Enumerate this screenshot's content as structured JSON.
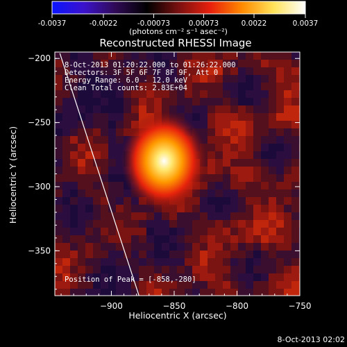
{
  "chart_data": {
    "type": "heatmap",
    "title": "Reconstructed RHESSI Image",
    "xlabel": "Heliocentric X (arcsec)",
    "ylabel": "Heliocentric Y (arcsec)",
    "xlim": [
      -945,
      -750
    ],
    "ylim": [
      -385,
      -195
    ],
    "x_ticks": [
      -900,
      -850,
      -800,
      -750
    ],
    "y_ticks": [
      -200,
      -250,
      -300,
      -350
    ],
    "x_tick_labels": [
      "−900",
      "−850",
      "−800",
      "−750"
    ],
    "y_tick_labels": [
      "−200",
      "−250",
      "−300",
      "−350"
    ],
    "annotations": [
      "8-Oct-2013 01:20:22.000 to 01:26:22.000",
      "Detectors: 3F 5F 6F 7F 8F 9F, Att 0",
      "Energy Range: 6.0 - 12.0 keV",
      "Clean    Total counts: 2.83E+04",
      "Position of Peak = [-858,-280]"
    ],
    "peak": {
      "x": -858,
      "y": -280
    },
    "colorbar": {
      "ticks": [
        -0.0037,
        -0.0022,
        -0.00073,
        0.00073,
        0.0022,
        0.0037
      ],
      "tick_labels": [
        "-0.0037",
        "-0.0022",
        "-0.00073",
        "0.00073",
        "0.0022",
        "0.0037"
      ],
      "unit_label": "(photons cm⁻² s⁻¹ asec⁻²)",
      "range": [
        -0.0037,
        0.0037
      ],
      "colors": [
        "#0a14ff",
        "#3b12cc",
        "#300a55",
        "#000000",
        "#7a1010",
        "#e8200c",
        "#ff8a00",
        "#ffe35a",
        "#ffffff"
      ]
    },
    "limb_line": {
      "points": [
        [
          -941,
          -196
        ],
        [
          -878,
          -385
        ]
      ]
    },
    "grid": false,
    "timestamp": "8-Oct-2013 02:02"
  }
}
